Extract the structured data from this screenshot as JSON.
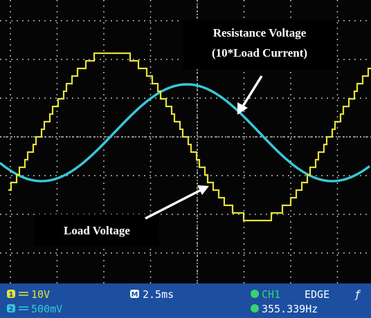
{
  "annotations": {
    "resistance": [
      "Resistance Voltage",
      "(10*Load Current)"
    ],
    "load": "Load Voltage"
  },
  "status": {
    "ch1": {
      "badge": "1",
      "scale": "10V"
    },
    "ch2": {
      "badge": "2",
      "scale": "500mV"
    },
    "timebase": {
      "badge": "M",
      "value": "2.5ms"
    },
    "trigger": {
      "source": "CH1",
      "mode": "EDGE",
      "slope": "ƒ"
    },
    "frequency": "355.339Hz"
  }
}
